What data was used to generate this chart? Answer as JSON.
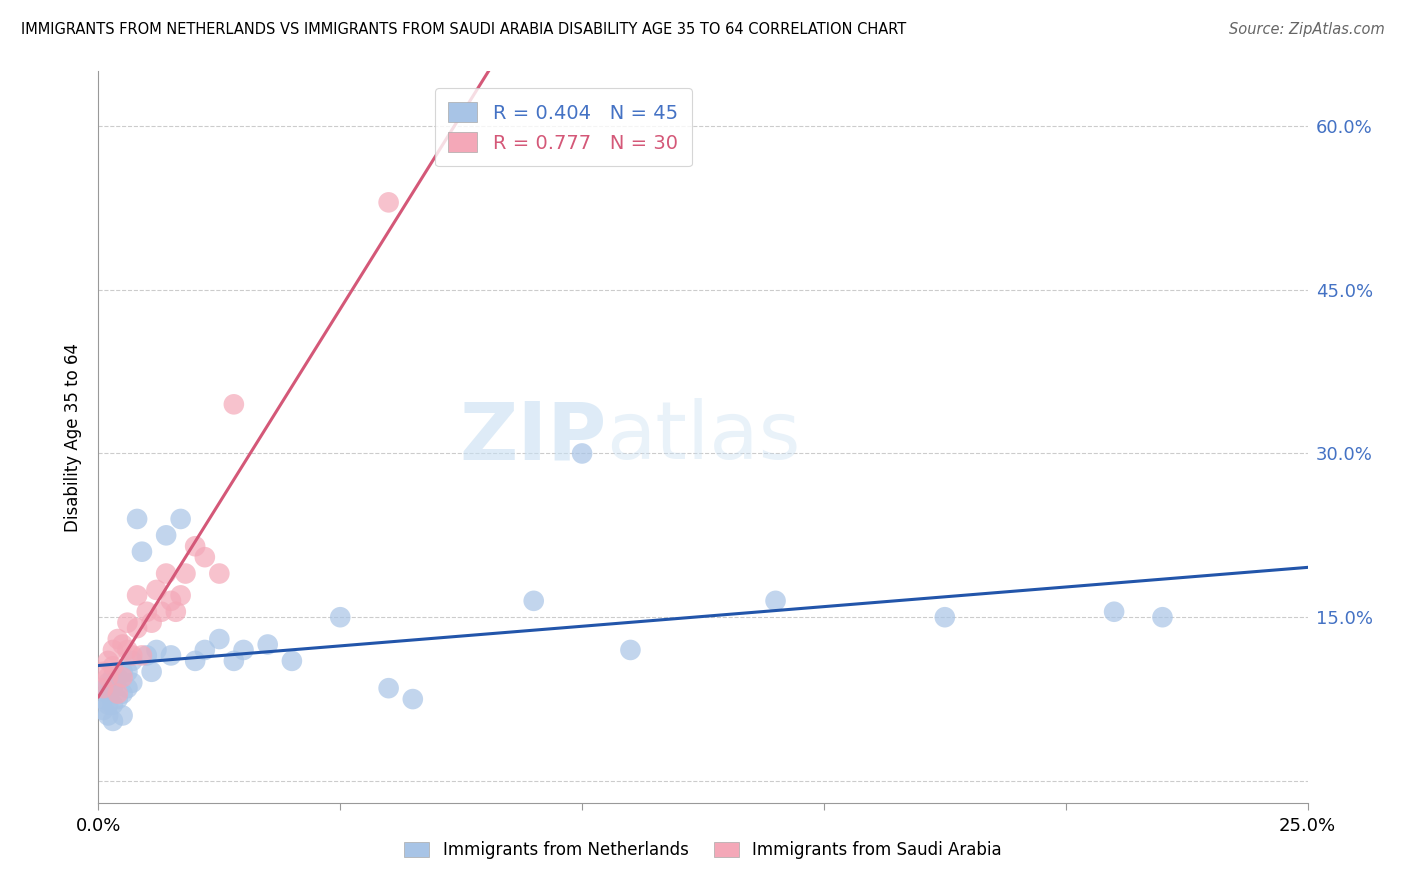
{
  "title": "IMMIGRANTS FROM NETHERLANDS VS IMMIGRANTS FROM SAUDI ARABIA DISABILITY AGE 35 TO 64 CORRELATION CHART",
  "source": "Source: ZipAtlas.com",
  "ylabel": "Disability Age 35 to 64",
  "xlim": [
    0.0,
    0.25
  ],
  "ylim": [
    -0.02,
    0.65
  ],
  "xticks": [
    0.0,
    0.05,
    0.1,
    0.15,
    0.2,
    0.25
  ],
  "ytick_positions": [
    0.0,
    0.15,
    0.3,
    0.45,
    0.6
  ],
  "ytick_labels": [
    "",
    "15.0%",
    "30.0%",
    "45.0%",
    "60.0%"
  ],
  "xtick_labels": [
    "0.0%",
    "",
    "",
    "",
    "",
    "25.0%"
  ],
  "netherlands_R": 0.404,
  "netherlands_N": 45,
  "saudi_R": 0.777,
  "saudi_N": 30,
  "netherlands_color": "#a8c4e6",
  "saudi_color": "#f4a8b8",
  "netherlands_line_color": "#2255aa",
  "saudi_line_color": "#d45878",
  "watermark_zip": "ZIP",
  "watermark_atlas": "atlas",
  "nl_x": [
    0.001,
    0.001,
    0.001,
    0.002,
    0.002,
    0.002,
    0.002,
    0.003,
    0.003,
    0.003,
    0.003,
    0.004,
    0.004,
    0.005,
    0.005,
    0.005,
    0.006,
    0.006,
    0.007,
    0.007,
    0.008,
    0.009,
    0.01,
    0.011,
    0.012,
    0.014,
    0.015,
    0.017,
    0.02,
    0.022,
    0.025,
    0.028,
    0.03,
    0.035,
    0.04,
    0.05,
    0.06,
    0.065,
    0.09,
    0.1,
    0.11,
    0.14,
    0.175,
    0.21,
    0.22
  ],
  "nl_y": [
    0.085,
    0.075,
    0.065,
    0.09,
    0.08,
    0.07,
    0.06,
    0.095,
    0.085,
    0.07,
    0.055,
    0.095,
    0.075,
    0.1,
    0.08,
    0.06,
    0.1,
    0.085,
    0.11,
    0.09,
    0.24,
    0.21,
    0.115,
    0.1,
    0.12,
    0.225,
    0.115,
    0.24,
    0.11,
    0.12,
    0.13,
    0.11,
    0.12,
    0.125,
    0.11,
    0.15,
    0.085,
    0.075,
    0.165,
    0.3,
    0.12,
    0.165,
    0.15,
    0.155,
    0.15
  ],
  "sa_x": [
    0.001,
    0.001,
    0.002,
    0.002,
    0.003,
    0.003,
    0.004,
    0.004,
    0.005,
    0.005,
    0.006,
    0.006,
    0.007,
    0.008,
    0.008,
    0.009,
    0.01,
    0.011,
    0.012,
    0.013,
    0.014,
    0.015,
    0.016,
    0.017,
    0.018,
    0.02,
    0.022,
    0.025,
    0.028,
    0.06
  ],
  "sa_y": [
    0.1,
    0.085,
    0.11,
    0.095,
    0.12,
    0.105,
    0.13,
    0.08,
    0.125,
    0.095,
    0.145,
    0.12,
    0.115,
    0.17,
    0.14,
    0.115,
    0.155,
    0.145,
    0.175,
    0.155,
    0.19,
    0.165,
    0.155,
    0.17,
    0.19,
    0.215,
    0.205,
    0.19,
    0.345,
    0.53
  ]
}
